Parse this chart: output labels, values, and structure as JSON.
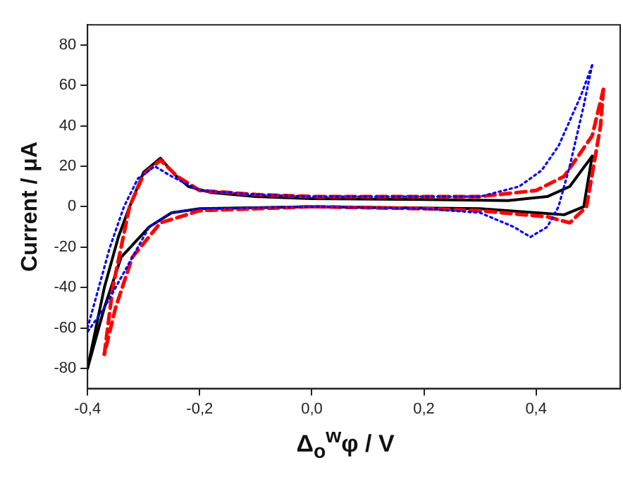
{
  "chart_data": {
    "type": "line",
    "xlabel": "Δ$_{o}$$^{w}$φ / V",
    "ylabel": "Current / μA",
    "xlim": [
      -0.4,
      0.55
    ],
    "ylim": [
      -90,
      90
    ],
    "xticks": [
      {
        "value": -0.4,
        "label": "-0,4"
      },
      {
        "value": -0.2,
        "label": "-0,2"
      },
      {
        "value": 0,
        "label": "0,0"
      },
      {
        "value": 0.2,
        "label": "0,2"
      },
      {
        "value": 0.4,
        "label": "0,4"
      }
    ],
    "yticks": [
      -80,
      -60,
      -40,
      -20,
      0,
      20,
      40,
      60,
      80
    ],
    "grid": false,
    "legend": false,
    "marker": "none",
    "series": [
      {
        "color": "#0000ff",
        "line_style": "dotted",
        "x": [
          -0.4,
          -0.36,
          -0.335,
          -0.31,
          -0.28,
          -0.25,
          -0.2,
          -0.1,
          0,
          0.2,
          0.3,
          0.37,
          0.41,
          0.44,
          0.48,
          0.5
        ],
        "values": [
          -60,
          -20,
          0,
          14,
          20,
          15,
          8,
          6,
          5,
          5,
          5,
          10,
          18,
          30,
          55,
          70
        ]
      },
      {
        "color": "#0000ff",
        "line_style": "dotted",
        "x": [
          0.5,
          0.485,
          0.46,
          0.44,
          0.42,
          0.39,
          0.36,
          0.3,
          0.2,
          0,
          -0.2,
          -0.25,
          -0.29,
          -0.33,
          -0.37,
          -0.4
        ],
        "values": [
          70,
          50,
          20,
          0,
          -10,
          -15,
          -10,
          -3,
          -1,
          0,
          -1,
          -3,
          -10,
          -30,
          -50,
          -62
        ]
      },
      {
        "color": "#ff0000",
        "line_style": "dashed",
        "x": [
          -0.37,
          -0.355,
          -0.325,
          -0.3,
          -0.27,
          -0.24,
          -0.2,
          -0.1,
          0,
          0.2,
          0.3,
          0.4,
          0.45,
          0.5,
          0.52
        ],
        "values": [
          -73,
          -40,
          0,
          16,
          23,
          15,
          8,
          6,
          5,
          5,
          5,
          8,
          15,
          35,
          58
        ]
      },
      {
        "color": "#ff0000",
        "line_style": "dashed",
        "x": [
          0.52,
          0.515,
          0.49,
          0.46,
          0.42,
          0.3,
          0.2,
          0,
          -0.2,
          -0.27,
          -0.32,
          -0.35,
          -0.37
        ],
        "values": [
          58,
          40,
          0,
          -8,
          -5,
          -2,
          -1,
          0,
          -2,
          -8,
          -25,
          -50,
          -73
        ]
      },
      {
        "color": "#000000",
        "line_style": "solid",
        "x": [
          -0.4,
          -0.37,
          -0.345,
          -0.325,
          -0.3,
          -0.27,
          -0.245,
          -0.22,
          -0.18,
          -0.1,
          0,
          0.2,
          0.35,
          0.42,
          0.46,
          0.5
        ],
        "values": [
          -80,
          -40,
          -15,
          0,
          17,
          24,
          16,
          10,
          7,
          5,
          4,
          3.5,
          3,
          5,
          10,
          25
        ]
      },
      {
        "color": "#000000",
        "line_style": "solid",
        "x": [
          0.5,
          0.485,
          0.45,
          0.4,
          0.3,
          0,
          -0.2,
          -0.25,
          -0.29,
          -0.34,
          -0.37,
          -0.4
        ],
        "values": [
          25,
          0,
          -4,
          -3,
          -1,
          0,
          -1,
          -3,
          -10,
          -25,
          -50,
          -80
        ]
      }
    ]
  }
}
